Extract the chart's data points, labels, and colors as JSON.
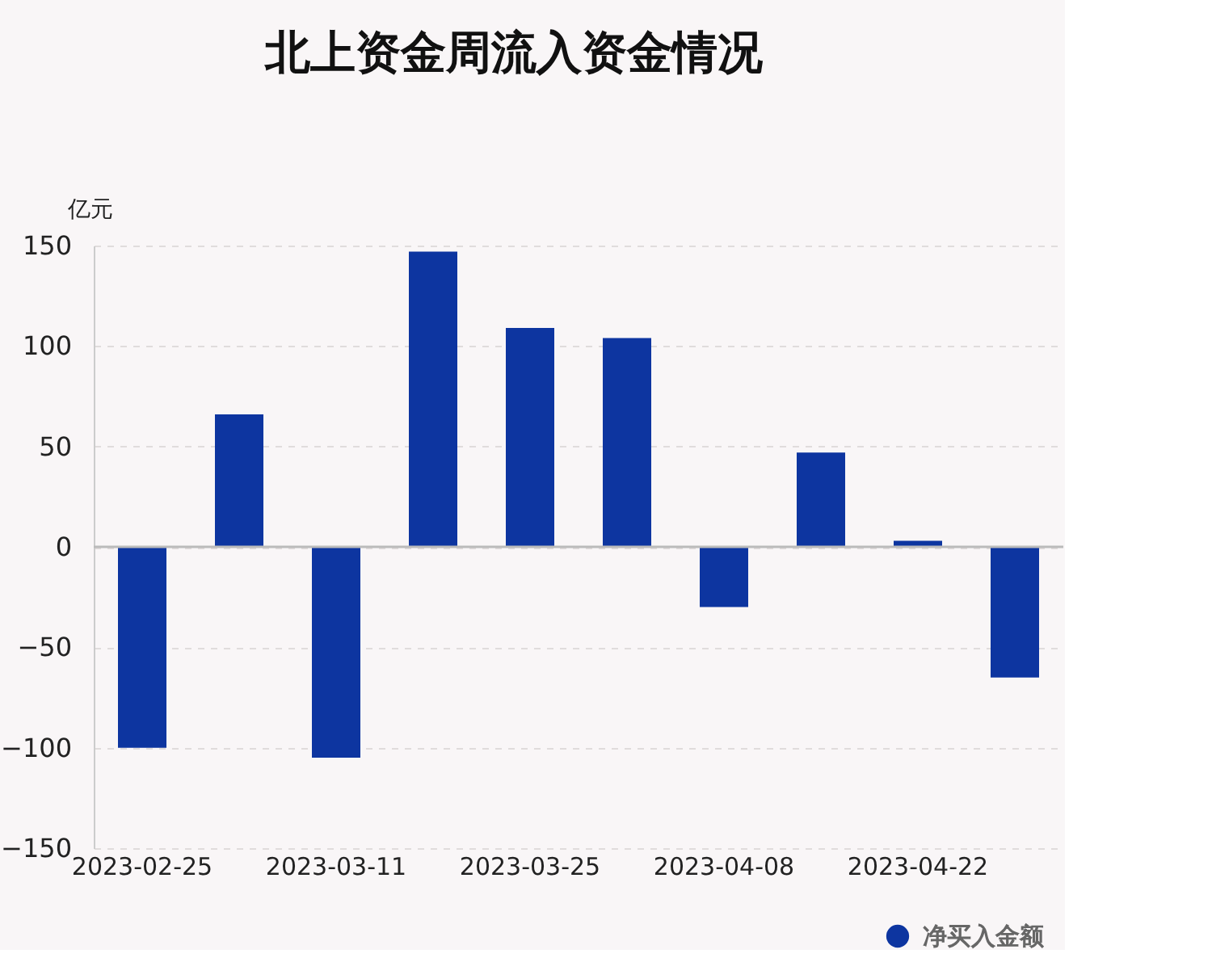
{
  "chart_data": {
    "type": "bar",
    "title": "北上资金周流入资金情况",
    "ylabel": "亿元",
    "categories": [
      "2023-02-25",
      null,
      "2023-03-11",
      null,
      "2023-03-25",
      null,
      "2023-04-08",
      null,
      "2023-04-22",
      null
    ],
    "series": [
      {
        "name": "净买入金额",
        "color": "#0d35a0",
        "values": [
          -100,
          66,
          -105,
          147,
          109,
          104,
          -30,
          47,
          3,
          -65
        ]
      }
    ],
    "ylim": [
      -150,
      150
    ],
    "yticks": [
      -150,
      -100,
      -50,
      0,
      50,
      100,
      150
    ],
    "grid": "y",
    "legend": "bottom right"
  }
}
